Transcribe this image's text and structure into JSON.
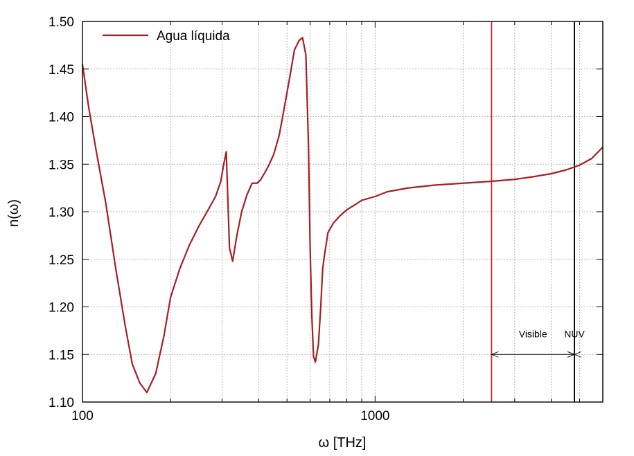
{
  "chart_data": {
    "type": "line",
    "xlabel": "ω [THz]",
    "ylabel": "n(ω)",
    "xscale": "log",
    "xlim": [
      100,
      6000
    ],
    "ylim": [
      1.1,
      1.5
    ],
    "x_tick_labels": [
      {
        "value": 100,
        "label": "100"
      },
      {
        "value": 1000,
        "label": "1000"
      }
    ],
    "y_ticks": [
      1.1,
      1.15,
      1.2,
      1.25,
      1.3,
      1.35,
      1.4,
      1.45,
      1.5
    ],
    "y_tick_labels": [
      "1.10",
      "1.15",
      "1.20",
      "1.25",
      "1.30",
      "1.35",
      "1.40",
      "1.45",
      "1.50"
    ],
    "grid": true,
    "legend": {
      "position": "top-left",
      "entries": [
        "Agua líquida"
      ]
    },
    "series": [
      {
        "name": "Agua líquida",
        "color": "#a51e22",
        "x": [
          100,
          105,
          112,
          120,
          130,
          140,
          148,
          157,
          166,
          178,
          190,
          200,
          215,
          232,
          250,
          270,
          285,
          297,
          304,
          310,
          318,
          326,
          337,
          350,
          365,
          380,
          395,
          405,
          418,
          432,
          450,
          470,
          490,
          510,
          530,
          550,
          565,
          580,
          592,
          600,
          608,
          616,
          625,
          640,
          652,
          662,
          672,
          690,
          720,
          760,
          800,
          850,
          900,
          1000,
          1100,
          1300,
          1600,
          2000,
          2500,
          3000,
          3500,
          4000,
          4500,
          5000,
          5500,
          6000
        ],
        "y": [
          1.455,
          1.41,
          1.36,
          1.31,
          1.24,
          1.18,
          1.14,
          1.12,
          1.11,
          1.13,
          1.17,
          1.21,
          1.24,
          1.265,
          1.285,
          1.303,
          1.316,
          1.332,
          1.35,
          1.363,
          1.262,
          1.248,
          1.275,
          1.3,
          1.318,
          1.33,
          1.33,
          1.333,
          1.34,
          1.348,
          1.36,
          1.38,
          1.41,
          1.44,
          1.47,
          1.48,
          1.483,
          1.465,
          1.37,
          1.26,
          1.19,
          1.148,
          1.142,
          1.16,
          1.2,
          1.24,
          1.255,
          1.278,
          1.288,
          1.296,
          1.302,
          1.307,
          1.312,
          1.316,
          1.321,
          1.325,
          1.328,
          1.33,
          1.332,
          1.334,
          1.337,
          1.34,
          1.344,
          1.349,
          1.356,
          1.368
        ]
      }
    ],
    "vertical_lines": [
      {
        "x": 2500,
        "color": "#d81f2a"
      },
      {
        "x": 4800,
        "color": "#4a33a8"
      },
      {
        "x": 6200,
        "color": "#000000"
      }
    ],
    "annotations": [
      {
        "text": "Visible",
        "from": 2500,
        "to": 4800,
        "y": 1.15
      },
      {
        "text": "NUV",
        "from": 4800,
        "to": 6200,
        "y": 1.15
      }
    ]
  }
}
